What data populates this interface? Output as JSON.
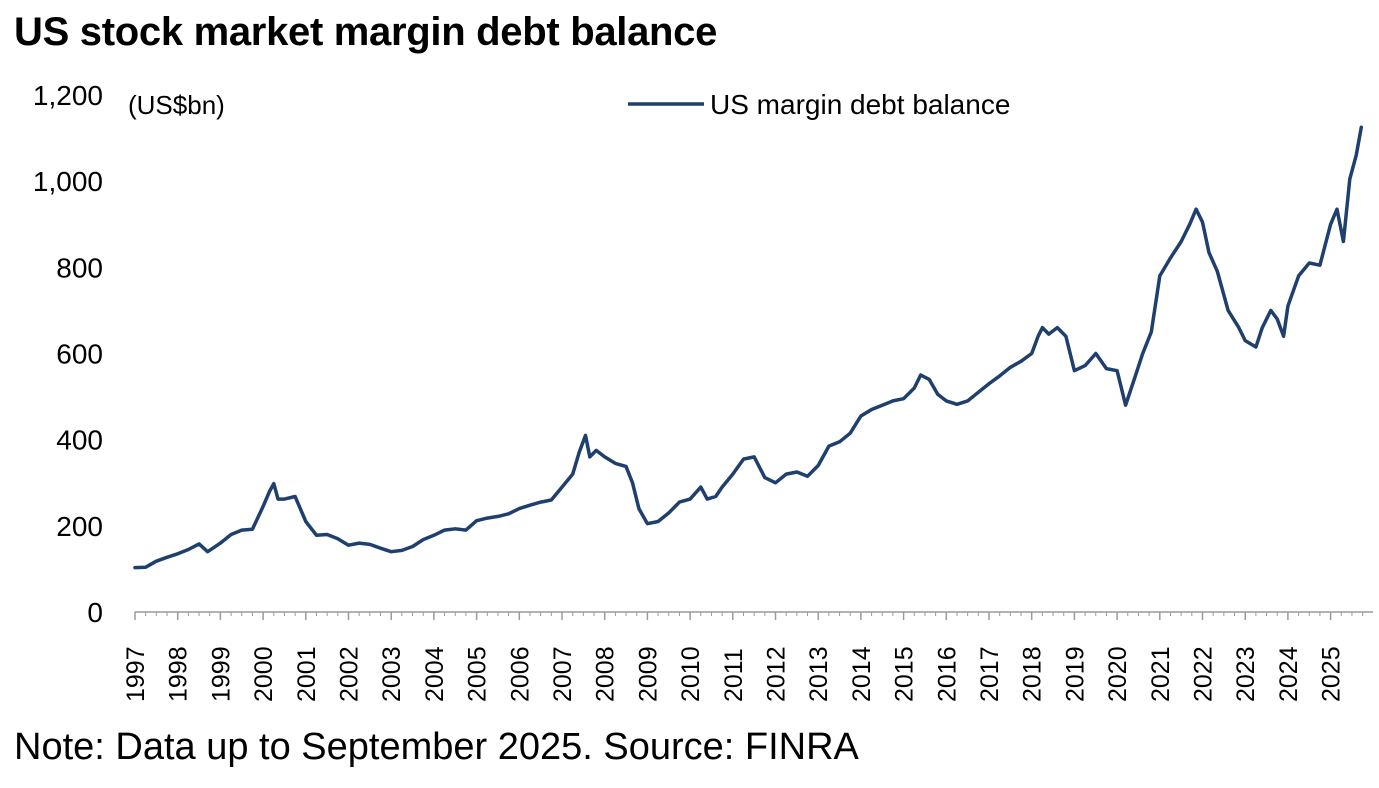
{
  "title": "US stock market margin debt balance",
  "note": "Note: Data up to September 2025. Source: FINRA",
  "chart_data": {
    "type": "line",
    "title": "US stock market margin debt balance",
    "ylabel": "(US$bn)",
    "xlabel": "",
    "ylim": [
      0,
      1200
    ],
    "yticks": [
      0,
      200,
      400,
      600,
      800,
      1000,
      1200
    ],
    "ytick_labels": [
      "0",
      "200",
      "400",
      "600",
      "800",
      "1,000",
      "1,200"
    ],
    "xlim": [
      1997.0,
      2025.75
    ],
    "xticks": [
      1997,
      1998,
      1999,
      2000,
      2001,
      2002,
      2003,
      2004,
      2005,
      2006,
      2007,
      2008,
      2009,
      2010,
      2011,
      2012,
      2013,
      2014,
      2015,
      2016,
      2017,
      2018,
      2019,
      2020,
      2021,
      2022,
      2023,
      2024,
      2025
    ],
    "xtick_labels": [
      "1997",
      "1998",
      "1999",
      "2000",
      "2001",
      "2002",
      "2003",
      "2004",
      "2005",
      "2006",
      "2007",
      "2008",
      "2009",
      "2010",
      "2011",
      "2012",
      "2013",
      "2014",
      "2015",
      "2016",
      "2017",
      "2018",
      "2019",
      "2020",
      "2021",
      "2022",
      "2023",
      "2024",
      "2025"
    ],
    "legend": "top-center",
    "series": [
      {
        "name": "US margin debt balance",
        "color": "#1f3f6e",
        "points": [
          [
            1997.0,
            103
          ],
          [
            1997.25,
            104
          ],
          [
            1997.5,
            118
          ],
          [
            1997.75,
            127
          ],
          [
            1998.0,
            135
          ],
          [
            1998.25,
            145
          ],
          [
            1998.5,
            158
          ],
          [
            1998.7,
            140
          ],
          [
            1998.85,
            150
          ],
          [
            1999.0,
            160
          ],
          [
            1999.25,
            180
          ],
          [
            1999.5,
            190
          ],
          [
            1999.75,
            192
          ],
          [
            2000.0,
            245
          ],
          [
            2000.15,
            280
          ],
          [
            2000.25,
            298
          ],
          [
            2000.35,
            262
          ],
          [
            2000.5,
            262
          ],
          [
            2000.75,
            268
          ],
          [
            2001.0,
            210
          ],
          [
            2001.25,
            178
          ],
          [
            2001.5,
            180
          ],
          [
            2001.75,
            170
          ],
          [
            2002.0,
            155
          ],
          [
            2002.25,
            160
          ],
          [
            2002.5,
            157
          ],
          [
            2002.75,
            148
          ],
          [
            2003.0,
            140
          ],
          [
            2003.25,
            143
          ],
          [
            2003.5,
            152
          ],
          [
            2003.75,
            168
          ],
          [
            2004.0,
            178
          ],
          [
            2004.25,
            190
          ],
          [
            2004.5,
            193
          ],
          [
            2004.75,
            190
          ],
          [
            2005.0,
            212
          ],
          [
            2005.25,
            218
          ],
          [
            2005.5,
            222
          ],
          [
            2005.75,
            228
          ],
          [
            2006.0,
            240
          ],
          [
            2006.25,
            248
          ],
          [
            2006.5,
            255
          ],
          [
            2006.75,
            260
          ],
          [
            2007.0,
            290
          ],
          [
            2007.25,
            320
          ],
          [
            2007.4,
            370
          ],
          [
            2007.55,
            410
          ],
          [
            2007.65,
            360
          ],
          [
            2007.8,
            375
          ],
          [
            2008.0,
            360
          ],
          [
            2008.25,
            345
          ],
          [
            2008.5,
            338
          ],
          [
            2008.65,
            300
          ],
          [
            2008.8,
            240
          ],
          [
            2009.0,
            205
          ],
          [
            2009.25,
            210
          ],
          [
            2009.5,
            230
          ],
          [
            2009.75,
            255
          ],
          [
            2010.0,
            262
          ],
          [
            2010.25,
            290
          ],
          [
            2010.4,
            262
          ],
          [
            2010.6,
            268
          ],
          [
            2010.75,
            290
          ],
          [
            2011.0,
            320
          ],
          [
            2011.25,
            355
          ],
          [
            2011.5,
            360
          ],
          [
            2011.75,
            312
          ],
          [
            2012.0,
            300
          ],
          [
            2012.25,
            320
          ],
          [
            2012.5,
            325
          ],
          [
            2012.75,
            315
          ],
          [
            2013.0,
            340
          ],
          [
            2013.25,
            385
          ],
          [
            2013.5,
            395
          ],
          [
            2013.75,
            415
          ],
          [
            2014.0,
            455
          ],
          [
            2014.25,
            470
          ],
          [
            2014.5,
            480
          ],
          [
            2014.75,
            490
          ],
          [
            2015.0,
            495
          ],
          [
            2015.25,
            520
          ],
          [
            2015.4,
            550
          ],
          [
            2015.6,
            540
          ],
          [
            2015.8,
            505
          ],
          [
            2016.0,
            490
          ],
          [
            2016.25,
            482
          ],
          [
            2016.5,
            490
          ],
          [
            2016.75,
            510
          ],
          [
            2017.0,
            530
          ],
          [
            2017.25,
            548
          ],
          [
            2017.5,
            568
          ],
          [
            2017.75,
            582
          ],
          [
            2018.0,
            600
          ],
          [
            2018.15,
            640
          ],
          [
            2018.25,
            660
          ],
          [
            2018.4,
            645
          ],
          [
            2018.6,
            660
          ],
          [
            2018.8,
            640
          ],
          [
            2019.0,
            560
          ],
          [
            2019.25,
            572
          ],
          [
            2019.5,
            600
          ],
          [
            2019.75,
            565
          ],
          [
            2020.0,
            560
          ],
          [
            2020.2,
            480
          ],
          [
            2020.4,
            540
          ],
          [
            2020.6,
            600
          ],
          [
            2020.8,
            650
          ],
          [
            2021.0,
            780
          ],
          [
            2021.25,
            822
          ],
          [
            2021.5,
            860
          ],
          [
            2021.7,
            900
          ],
          [
            2021.85,
            935
          ],
          [
            2022.0,
            905
          ],
          [
            2022.15,
            835
          ],
          [
            2022.35,
            790
          ],
          [
            2022.6,
            700
          ],
          [
            2022.85,
            660
          ],
          [
            2023.0,
            630
          ],
          [
            2023.25,
            615
          ],
          [
            2023.4,
            660
          ],
          [
            2023.6,
            700
          ],
          [
            2023.75,
            680
          ],
          [
            2023.9,
            640
          ],
          [
            2024.0,
            710
          ],
          [
            2024.25,
            780
          ],
          [
            2024.5,
            810
          ],
          [
            2024.75,
            805
          ],
          [
            2025.0,
            900
          ],
          [
            2025.15,
            935
          ],
          [
            2025.3,
            860
          ],
          [
            2025.45,
            1005
          ],
          [
            2025.6,
            1060
          ],
          [
            2025.72,
            1125
          ]
        ]
      }
    ]
  }
}
